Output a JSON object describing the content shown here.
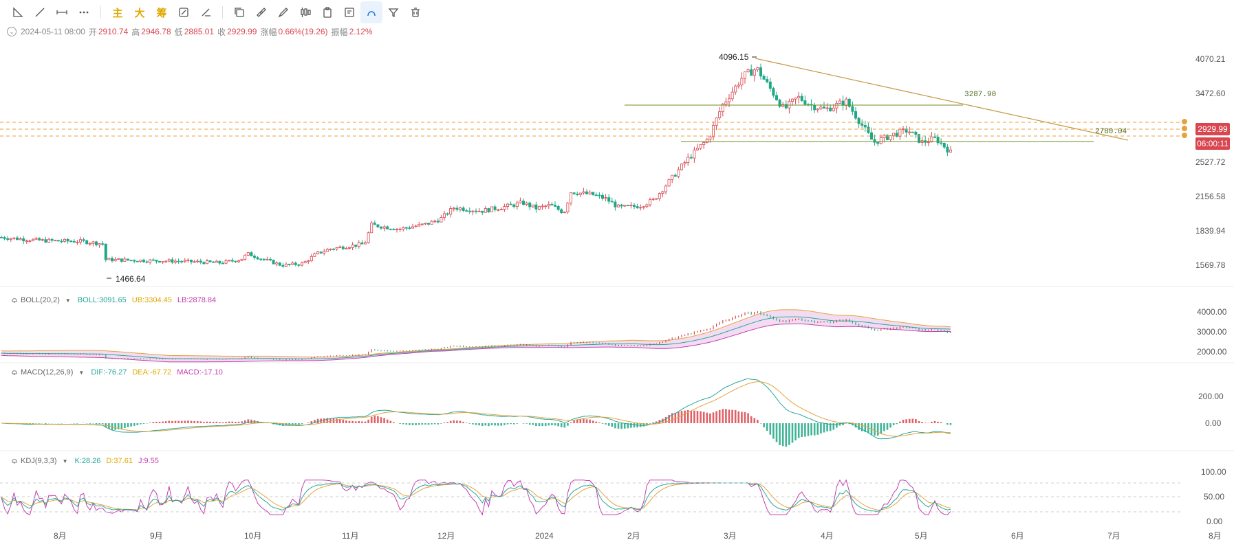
{
  "toolbar": {
    "text_buttons": [
      "主",
      "大",
      "筹"
    ]
  },
  "ohlc": {
    "datetime": "2024-05-11 08:00",
    "open_label": "开",
    "open": "2910.74",
    "high_label": "高",
    "high": "2946.78",
    "low_label": "低",
    "low": "2885.01",
    "close_label": "收",
    "close": "2929.99",
    "change_label": "涨幅",
    "change": "0.66%(19.26)",
    "amp_label": "振幅",
    "amp": "2.12%"
  },
  "price_axis": [
    "4070.21",
    "3472.60",
    "2527.72",
    "2156.58",
    "1839.94",
    "1569.78"
  ],
  "price_tags": {
    "last_price": "2929.99",
    "countdown": "06:00:11"
  },
  "annotations": {
    "peak": "4096.15",
    "trough": "1466.64",
    "resistance": "3287.90",
    "support": "2780.04"
  },
  "boll": {
    "name": "BOLL(20,2)",
    "mid": "BOLL:3091.65",
    "ub": "UB:3304.45",
    "lb": "LB:2878.84",
    "axis": [
      "4000.00",
      "3000.00",
      "2000.00"
    ]
  },
  "macd": {
    "name": "MACD(12,26,9)",
    "dif": "DIF:-76.27",
    "dea": "DEA:-67.72",
    "macd": "MACD:-17.10",
    "axis": [
      "200.00",
      "0.00"
    ]
  },
  "kdj": {
    "name": "KDJ(9,3,3)",
    "k": "K:28.26",
    "d": "D:37.61",
    "j": "J:9.55",
    "axis": [
      "100.00",
      "50.00",
      "0.00"
    ]
  },
  "time_axis": [
    "8月",
    "9月",
    "10月",
    "11月",
    "12月",
    "2024",
    "2月",
    "3月",
    "4月",
    "5月",
    "6月",
    "7月",
    "8月"
  ],
  "colors": {
    "up": "#d9464f",
    "down": "#1fa886",
    "trendline": "#c89b4a",
    "hline": "#6b8e23",
    "dashed": "#e6a23c",
    "boll_mid": "#26a69a",
    "boll_ub": "#e6a23c",
    "boll_lb": "#c33cb0",
    "kdj_j": "#c33cb0",
    "accent": "#1a73e8"
  },
  "chart_data": {
    "type": "candlestick",
    "period": "weekly-ish daily candles, Jul 2023 - May 2024",
    "key_points": [
      {
        "x": "2023-08",
        "close": 1850
      },
      {
        "x": "2023-08-17",
        "low": 1466.64
      },
      {
        "x": "2023-10",
        "close": 1560
      },
      {
        "x": "2023-11",
        "close": 2050
      },
      {
        "x": "2024-01",
        "close": 2300
      },
      {
        "x": "2024-03-12",
        "high": 4096.15
      },
      {
        "x": "2024-05-11",
        "open": 2910.74,
        "high": 2946.78,
        "low": 2885.01,
        "close": 2929.99
      }
    ],
    "ylim": [
      1400,
      4200
    ],
    "ylabel": "",
    "xlabel": ""
  }
}
